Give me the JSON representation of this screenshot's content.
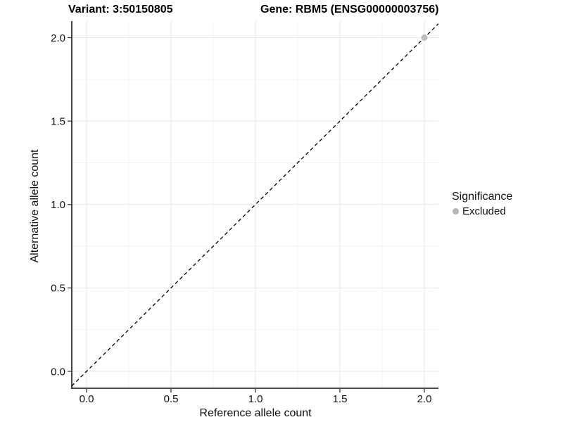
{
  "chart_data": {
    "type": "scatter",
    "title_left": "Variant: 3:50150805",
    "title_right": "Gene: RBM5 (ENSG00000003756)",
    "xlabel": "Reference allele count",
    "ylabel": "Alternative allele count",
    "xlim": [
      -0.088,
      2.083
    ],
    "ylim": [
      -0.101,
      2.099
    ],
    "xticks": [
      0.0,
      0.5,
      1.0,
      1.5,
      2.0
    ],
    "yticks": [
      0.0,
      0.5,
      1.0,
      1.5,
      2.0
    ],
    "xtick_labels": [
      "0.0",
      "0.5",
      "1.0",
      "1.5",
      "2.0"
    ],
    "ytick_labels": [
      "0.0",
      "0.5",
      "1.0",
      "1.5",
      "2.0"
    ],
    "minor_ticks": [
      0.25,
      0.75,
      1.25,
      1.75
    ],
    "grid": true,
    "reference_line": {
      "type": "identity y=x",
      "style": "dashed",
      "color": "#000000"
    },
    "series": [
      {
        "name": "Excluded",
        "color": "#bdbdbd",
        "points": [
          {
            "x": 2.0,
            "y": 2.0
          }
        ]
      }
    ],
    "legend": {
      "position": "right",
      "title": "Significance",
      "items": [
        {
          "label": "Excluded",
          "color": "#b5b5b5"
        }
      ]
    },
    "colors": {
      "background": "#ffffff",
      "grid_major": "#e6e6e6",
      "grid_minor": "#f3f3f3",
      "axis": "#333333",
      "text": "#111111"
    }
  }
}
